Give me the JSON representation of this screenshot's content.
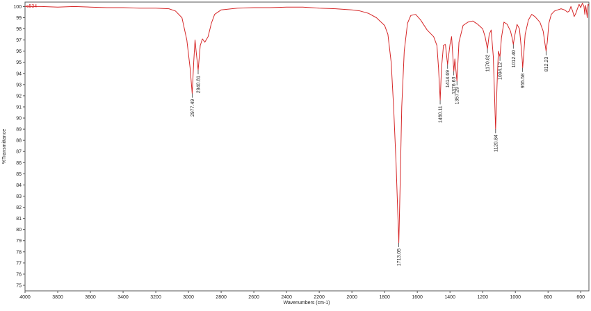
{
  "chart_data": {
    "type": "line",
    "xlabel": "Wavenumbers (cm-1)",
    "ylabel": "%Transmittance",
    "xlim": [
      4000,
      550
    ],
    "ylim": [
      74.5,
      100.4
    ],
    "x_reversed": true,
    "grid": false,
    "legend": "none",
    "line_color": "#d62728",
    "x_ticks": [
      4000,
      3800,
      3600,
      3400,
      3200,
      3000,
      2800,
      2600,
      2400,
      2200,
      2000,
      1800,
      1600,
      1400,
      1200,
      1000,
      800,
      600
    ],
    "y_ticks": [
      75,
      76,
      77,
      78,
      79,
      80,
      81,
      82,
      83,
      84,
      85,
      86,
      87,
      88,
      89,
      90,
      91,
      92,
      93,
      94,
      95,
      96,
      97,
      98,
      99,
      100
    ],
    "series": [
      {
        "name": "c534",
        "points": [
          [
            4000,
            100.0
          ],
          [
            3900,
            100.0
          ],
          [
            3800,
            99.95
          ],
          [
            3700,
            100.0
          ],
          [
            3600,
            99.95
          ],
          [
            3500,
            99.9
          ],
          [
            3400,
            99.9
          ],
          [
            3300,
            99.85
          ],
          [
            3200,
            99.85
          ],
          [
            3120,
            99.8
          ],
          [
            3080,
            99.6
          ],
          [
            3040,
            99.0
          ],
          [
            3010,
            97.0
          ],
          [
            2990,
            94.5
          ],
          [
            2977.49,
            92.2
          ],
          [
            2968,
            95.0
          ],
          [
            2960,
            97.0
          ],
          [
            2952,
            95.8
          ],
          [
            2940.81,
            94.3
          ],
          [
            2928,
            96.5
          ],
          [
            2915,
            97.1
          ],
          [
            2900,
            96.8
          ],
          [
            2880,
            97.3
          ],
          [
            2860,
            98.5
          ],
          [
            2840,
            99.3
          ],
          [
            2800,
            99.7
          ],
          [
            2700,
            99.85
          ],
          [
            2600,
            99.9
          ],
          [
            2500,
            99.9
          ],
          [
            2400,
            99.95
          ],
          [
            2300,
            99.95
          ],
          [
            2200,
            99.85
          ],
          [
            2100,
            99.8
          ],
          [
            2000,
            99.7
          ],
          [
            1950,
            99.6
          ],
          [
            1900,
            99.4
          ],
          [
            1850,
            99.0
          ],
          [
            1800,
            98.3
          ],
          [
            1780,
            97.5
          ],
          [
            1760,
            95.0
          ],
          [
            1745,
            91.0
          ],
          [
            1730,
            86.0
          ],
          [
            1713.05,
            78.8
          ],
          [
            1705,
            84.0
          ],
          [
            1695,
            91.0
          ],
          [
            1680,
            96.0
          ],
          [
            1660,
            98.5
          ],
          [
            1640,
            99.2
          ],
          [
            1610,
            99.3
          ],
          [
            1580,
            98.8
          ],
          [
            1540,
            97.9
          ],
          [
            1500,
            97.3
          ],
          [
            1480,
            96.5
          ],
          [
            1470,
            94.5
          ],
          [
            1460.11,
            91.6
          ],
          [
            1452,
            94.5
          ],
          [
            1440,
            96.5
          ],
          [
            1428,
            96.6
          ],
          [
            1414.69,
            94.8
          ],
          [
            1400,
            96.6
          ],
          [
            1390,
            97.3
          ],
          [
            1376.63,
            94.2
          ],
          [
            1370,
            95.3
          ],
          [
            1357.29,
            93.3
          ],
          [
            1345,
            96.8
          ],
          [
            1320,
            98.3
          ],
          [
            1290,
            98.6
          ],
          [
            1260,
            98.7
          ],
          [
            1230,
            98.4
          ],
          [
            1200,
            98.0
          ],
          [
            1185,
            97.3
          ],
          [
            1170.82,
            96.2
          ],
          [
            1160,
            97.5
          ],
          [
            1148,
            97.9
          ],
          [
            1135,
            95.5
          ],
          [
            1120.84,
            89.0
          ],
          [
            1112,
            93.0
          ],
          [
            1104,
            96.0
          ],
          [
            1094.12,
            95.5
          ],
          [
            1085,
            97.2
          ],
          [
            1070,
            98.6
          ],
          [
            1050,
            98.4
          ],
          [
            1030,
            97.8
          ],
          [
            1020,
            97.2
          ],
          [
            1012.4,
            96.6
          ],
          [
            1005,
            97.3
          ],
          [
            990,
            98.4
          ],
          [
            975,
            98.0
          ],
          [
            965,
            96.5
          ],
          [
            958,
            95.2
          ],
          [
            955.58,
            94.5
          ],
          [
            950,
            95.5
          ],
          [
            940,
            97.5
          ],
          [
            920,
            98.8
          ],
          [
            900,
            99.3
          ],
          [
            880,
            99.1
          ],
          [
            850,
            98.6
          ],
          [
            830,
            97.8
          ],
          [
            820,
            96.8
          ],
          [
            812.23,
            96.0
          ],
          [
            805,
            96.8
          ],
          [
            795,
            98.5
          ],
          [
            780,
            99.3
          ],
          [
            760,
            99.6
          ],
          [
            740,
            99.7
          ],
          [
            720,
            99.8
          ],
          [
            700,
            99.7
          ],
          [
            680,
            99.5
          ],
          [
            670,
            99.6
          ],
          [
            660,
            100.0
          ],
          [
            650,
            99.6
          ],
          [
            640,
            99.1
          ],
          [
            630,
            99.4
          ],
          [
            620,
            99.8
          ],
          [
            610,
            100.2
          ],
          [
            600,
            99.9
          ],
          [
            590,
            100.3
          ],
          [
            580,
            100.0
          ],
          [
            575,
            99.3
          ],
          [
            570,
            100.1
          ],
          [
            565,
            99.6
          ],
          [
            560,
            99.0
          ],
          [
            555,
            100.2
          ],
          [
            550,
            100.1
          ]
        ]
      }
    ],
    "peaks": [
      {
        "x": 2977.49,
        "y": 92.2,
        "label": "2977.49"
      },
      {
        "x": 2940.81,
        "y": 94.3,
        "label": "2940.81"
      },
      {
        "x": 1713.05,
        "y": 78.8,
        "label": "1713.05"
      },
      {
        "x": 1460.11,
        "y": 91.6,
        "label": "1460.11"
      },
      {
        "x": 1414.69,
        "y": 94.8,
        "label": "1414.69"
      },
      {
        "x": 1376.63,
        "y": 94.2,
        "label": "1376.63"
      },
      {
        "x": 1357.29,
        "y": 93.3,
        "label": "1357.29"
      },
      {
        "x": 1170.82,
        "y": 96.2,
        "label": "1170.82"
      },
      {
        "x": 1120.84,
        "y": 89.0,
        "label": "1120.84"
      },
      {
        "x": 1094.12,
        "y": 95.5,
        "label": "1094.12"
      },
      {
        "x": 1012.4,
        "y": 96.6,
        "label": "1012.40"
      },
      {
        "x": 955.58,
        "y": 94.5,
        "label": "955.58"
      },
      {
        "x": 812.23,
        "y": 96.0,
        "label": "812.23"
      }
    ]
  }
}
